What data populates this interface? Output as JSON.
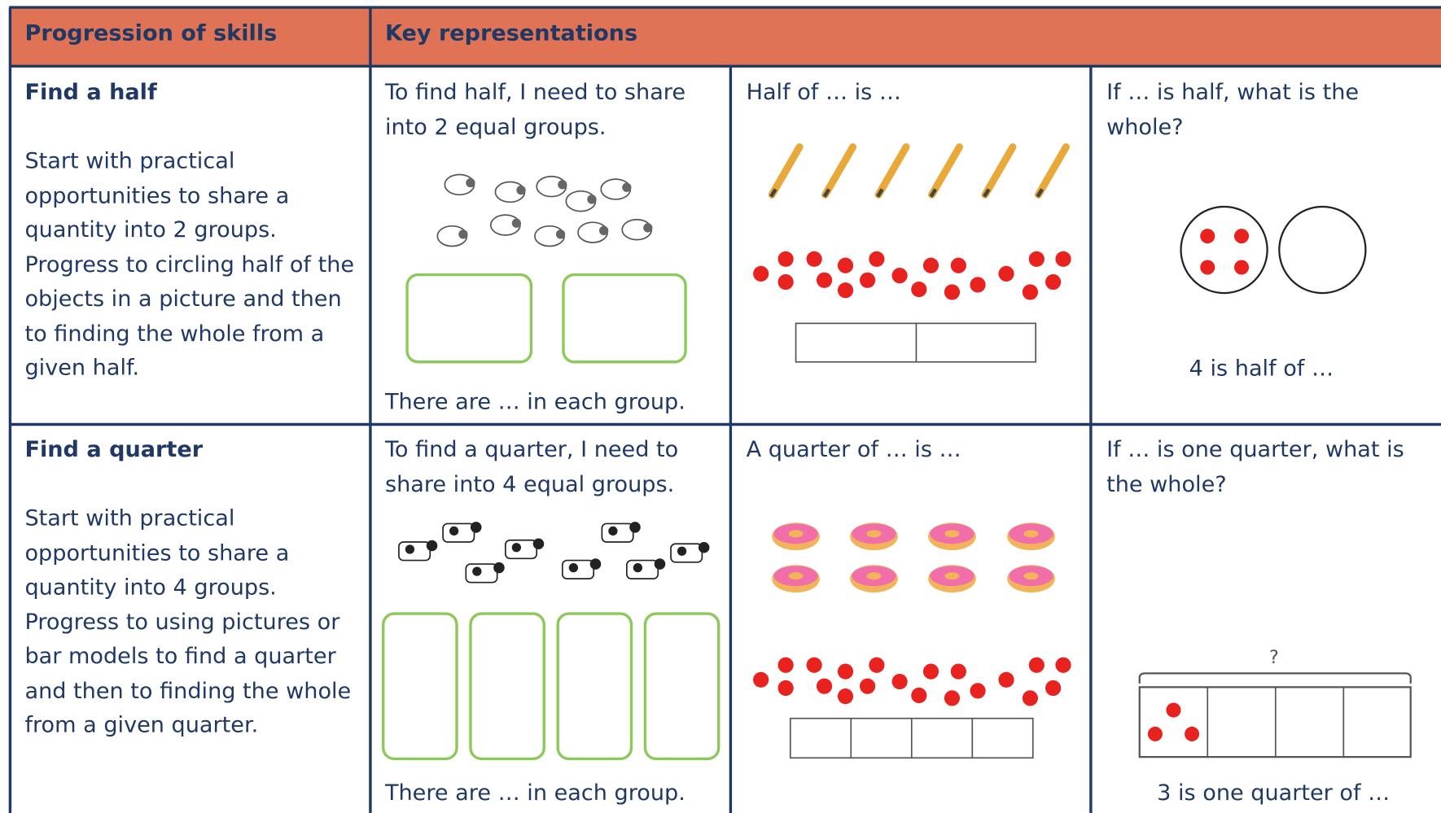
{
  "header": {
    "skills": "Progression of skills",
    "representations": "Key representations"
  },
  "rows": [
    {
      "title": "Find a half",
      "description": "Start with practical opportunities to share a quantity into 2 groups. Progress to circling half of the objects in a picture and then to finding the whole from a given half.",
      "cells": [
        {
          "text": "To find half, I need to share into 2 equal groups.",
          "caption": "There are … in each group."
        },
        {
          "text": "Half of … is …"
        },
        {
          "text": "If … is half, what is the whole?",
          "caption": "4 is half of …"
        }
      ]
    },
    {
      "title": "Find a quarter",
      "description": "Start with practical opportunities to share a quantity into 4 groups. Progress to using pictures or bar models to find a quarter and then to finding the whole from a given quarter.",
      "cells": [
        {
          "text": "To find a quarter, I need to share into 4 equal groups.",
          "caption": "There are … in each group."
        },
        {
          "text": "A quarter of … is …"
        },
        {
          "text": "If … is one quarter, what is the whole?",
          "caption": "3 is one quarter of …",
          "label": "?"
        }
      ]
    }
  ]
}
